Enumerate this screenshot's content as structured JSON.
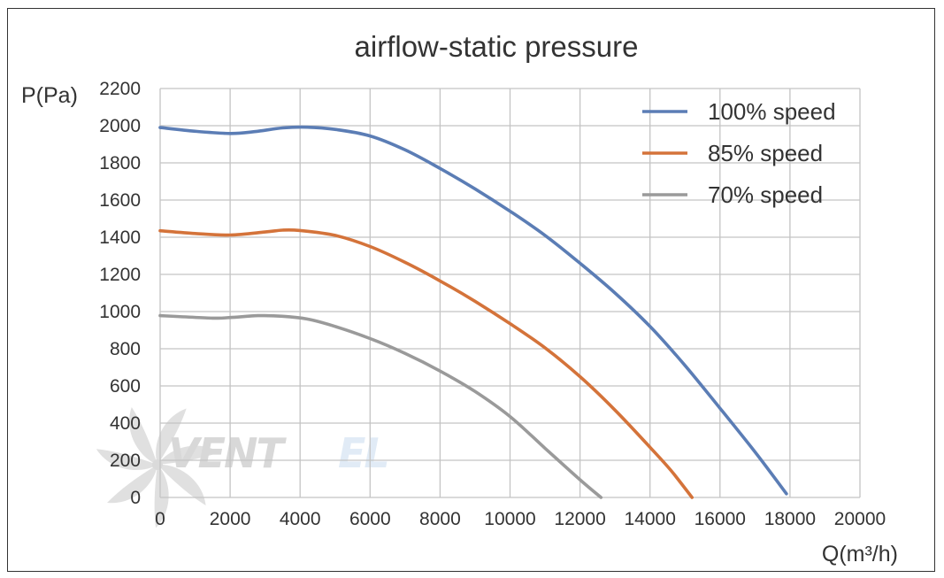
{
  "chart_data": {
    "type": "line",
    "title": "airflow-static pressure",
    "xlabel": "Q(m³/h)",
    "ylabel": "P(Pa)",
    "xlim": [
      0,
      20000
    ],
    "ylim": [
      0,
      2200
    ],
    "x_ticks": [
      0,
      2000,
      4000,
      6000,
      8000,
      10000,
      12000,
      14000,
      16000,
      18000,
      20000
    ],
    "y_ticks": [
      0,
      200,
      400,
      600,
      800,
      1000,
      1200,
      1400,
      1600,
      1800,
      2000,
      2200
    ],
    "grid": true,
    "legend_position": "top-right",
    "series": [
      {
        "name": "100% speed",
        "color": "#5b7db5",
        "points": [
          [
            0,
            1990
          ],
          [
            1000,
            1970
          ],
          [
            2000,
            1958
          ],
          [
            2700,
            1968
          ],
          [
            3500,
            1988
          ],
          [
            4200,
            1992
          ],
          [
            5000,
            1980
          ],
          [
            6000,
            1945
          ],
          [
            7000,
            1870
          ],
          [
            8000,
            1770
          ],
          [
            9000,
            1660
          ],
          [
            10000,
            1540
          ],
          [
            11000,
            1410
          ],
          [
            12000,
            1260
          ],
          [
            13000,
            1100
          ],
          [
            14000,
            920
          ],
          [
            15000,
            710
          ],
          [
            16000,
            480
          ],
          [
            17000,
            245
          ],
          [
            17900,
            20
          ]
        ]
      },
      {
        "name": "85% speed",
        "color": "#d4733a",
        "points": [
          [
            0,
            1435
          ],
          [
            1000,
            1420
          ],
          [
            2000,
            1412
          ],
          [
            3000,
            1428
          ],
          [
            3500,
            1438
          ],
          [
            4000,
            1436
          ],
          [
            5000,
            1410
          ],
          [
            6000,
            1350
          ],
          [
            7000,
            1265
          ],
          [
            8000,
            1165
          ],
          [
            9000,
            1055
          ],
          [
            10000,
            935
          ],
          [
            11000,
            805
          ],
          [
            12000,
            650
          ],
          [
            13000,
            470
          ],
          [
            14000,
            270
          ],
          [
            14600,
            145
          ],
          [
            15200,
            0
          ]
        ]
      },
      {
        "name": "70% speed",
        "color": "#9a9a9a",
        "points": [
          [
            0,
            978
          ],
          [
            1500,
            965
          ],
          [
            2000,
            968
          ],
          [
            2800,
            978
          ],
          [
            3500,
            975
          ],
          [
            4200,
            960
          ],
          [
            5000,
            920
          ],
          [
            6000,
            855
          ],
          [
            7000,
            775
          ],
          [
            8000,
            680
          ],
          [
            9000,
            570
          ],
          [
            10000,
            435
          ],
          [
            11000,
            265
          ],
          [
            12000,
            95
          ],
          [
            12600,
            0
          ]
        ]
      }
    ]
  },
  "watermark": {
    "text_dark": "VENT",
    "text_light": "EL",
    "icon": "fan-icon",
    "color_dark": "#b9b9b9",
    "color_light": "#c9dcef"
  }
}
